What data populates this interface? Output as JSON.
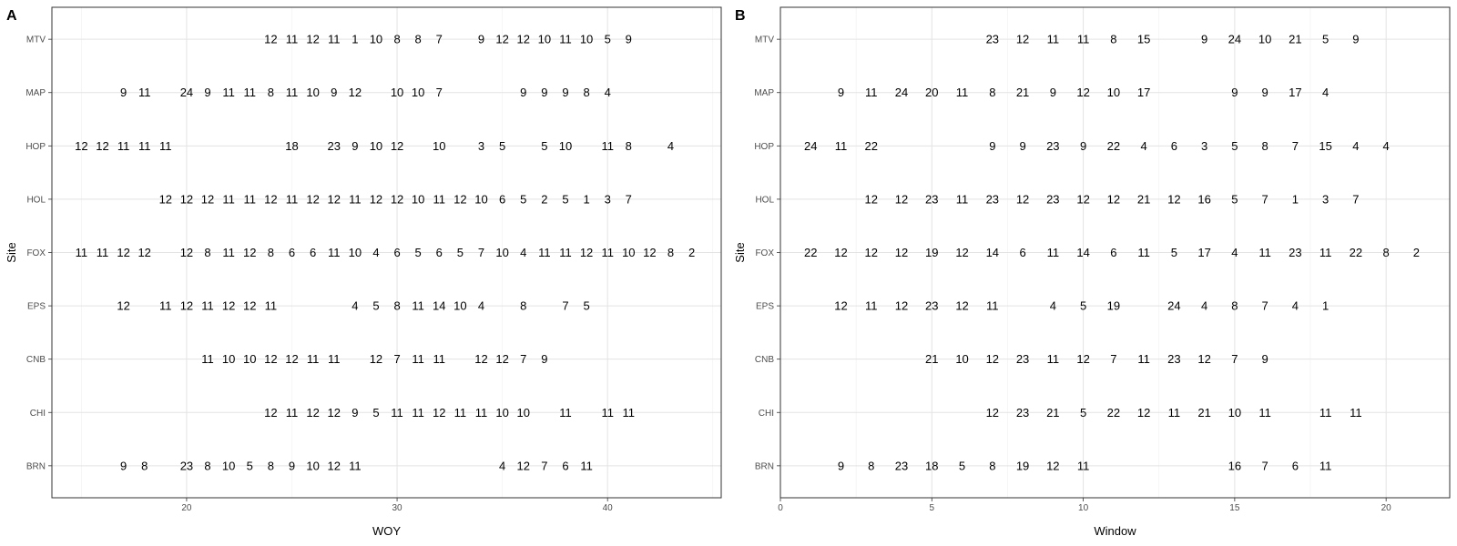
{
  "chart_data": [
    {
      "panel_tag": "A",
      "type": "table",
      "xlabel": "WOY",
      "ylabel": "Site",
      "xlim": [
        13.6,
        45.4
      ],
      "xticks": [
        20,
        30,
        40
      ],
      "sites": [
        "BRN",
        "CHI",
        "CNB",
        "EPS",
        "FOX",
        "HOL",
        "HOP",
        "MAP",
        "MTV"
      ],
      "grid": true,
      "rows": [
        {
          "site": "MTV",
          "x": [
            24,
            25,
            26,
            27,
            28,
            29,
            30,
            31,
            32,
            34,
            35,
            36,
            37,
            38,
            39,
            40,
            41
          ],
          "labels": [
            "12",
            "11",
            "12",
            "11",
            "1",
            "10",
            "8",
            "8",
            "7",
            "9",
            "12",
            "12",
            "10",
            "11",
            "10",
            "5",
            "9"
          ]
        },
        {
          "site": "MAP",
          "x": [
            17,
            18,
            20,
            21,
            22,
            23,
            24,
            25,
            26,
            27,
            28,
            30,
            31,
            32,
            36,
            37,
            38,
            39,
            40
          ],
          "labels": [
            "9",
            "11",
            "24",
            "9",
            "11",
            "11",
            "8",
            "11",
            "10",
            "9",
            "12",
            "10",
            "10",
            "7",
            "9",
            "9",
            "9",
            "8",
            "4"
          ]
        },
        {
          "site": "HOP",
          "x": [
            15,
            16,
            17,
            18,
            19,
            25,
            27,
            28,
            29,
            30,
            32,
            34,
            35,
            37,
            38,
            40,
            41,
            43
          ],
          "labels": [
            "12",
            "12",
            "11",
            "11",
            "11",
            "18",
            "23",
            "9",
            "10",
            "12",
            "10",
            "3",
            "5",
            "5",
            "10",
            "11",
            "8",
            "4"
          ]
        },
        {
          "site": "HOL",
          "x": [
            19,
            20,
            21,
            22,
            23,
            24,
            25,
            26,
            27,
            28,
            29,
            30,
            31,
            32,
            33,
            34,
            35,
            36,
            37,
            38,
            39,
            40,
            41
          ],
          "labels": [
            "12",
            "12",
            "12",
            "11",
            "11",
            "12",
            "11",
            "12",
            "12",
            "11",
            "12",
            "12",
            "10",
            "11",
            "12",
            "10",
            "6",
            "5",
            "2",
            "5",
            "1",
            "3",
            "7"
          ]
        },
        {
          "site": "FOX",
          "x": [
            15,
            16,
            17,
            18,
            20,
            21,
            22,
            23,
            24,
            25,
            26,
            27,
            28,
            29,
            30,
            31,
            32,
            33,
            34,
            35,
            36,
            37,
            38,
            39,
            40,
            41,
            42,
            43,
            44
          ],
          "labels": [
            "11",
            "11",
            "12",
            "12",
            "12",
            "8",
            "11",
            "12",
            "8",
            "6",
            "6",
            "11",
            "10",
            "4",
            "6",
            "5",
            "6",
            "5",
            "7",
            "10",
            "4",
            "11",
            "11",
            "12",
            "11",
            "10",
            "12",
            "8",
            "2"
          ]
        },
        {
          "site": "EPS",
          "x": [
            17,
            19,
            20,
            21,
            22,
            23,
            24,
            28,
            29,
            30,
            31,
            32,
            33,
            34,
            36,
            38,
            39
          ],
          "labels": [
            "12",
            "11",
            "12",
            "11",
            "12",
            "12",
            "11",
            "4",
            "5",
            "8",
            "11",
            "14",
            "10",
            "4",
            "8",
            "7",
            "5"
          ]
        },
        {
          "site": "CNB",
          "x": [
            21,
            22,
            23,
            24,
            25,
            26,
            27,
            29,
            30,
            31,
            32,
            34,
            35,
            36,
            37
          ],
          "labels": [
            "11",
            "10",
            "10",
            "12",
            "12",
            "11",
            "11",
            "12",
            "7",
            "11",
            "11",
            "12",
            "12",
            "7",
            "9"
          ]
        },
        {
          "site": "CHI",
          "x": [
            24,
            25,
            26,
            27,
            28,
            29,
            30,
            31,
            32,
            33,
            34,
            35,
            36,
            38,
            40,
            41
          ],
          "labels": [
            "12",
            "11",
            "12",
            "12",
            "9",
            "5",
            "11",
            "11",
            "12",
            "11",
            "11",
            "10",
            "10",
            "11",
            "11",
            "11"
          ]
        },
        {
          "site": "BRN",
          "x": [
            17,
            18,
            20,
            21,
            22,
            23,
            24,
            25,
            26,
            27,
            28,
            35,
            36,
            37,
            38,
            39
          ],
          "labels": [
            "9",
            "8",
            "23",
            "8",
            "10",
            "5",
            "8",
            "9",
            "10",
            "12",
            "11",
            "4",
            "12",
            "7",
            "6",
            "11"
          ]
        }
      ]
    },
    {
      "panel_tag": "B",
      "type": "table",
      "xlabel": "Window",
      "ylabel": "Site",
      "xlim": [
        0,
        22.1
      ],
      "xticks": [
        0,
        5,
        10,
        15,
        20
      ],
      "sites": [
        "BRN",
        "CHI",
        "CNB",
        "EPS",
        "FOX",
        "HOL",
        "HOP",
        "MAP",
        "MTV"
      ],
      "grid": true,
      "rows": [
        {
          "site": "MTV",
          "x": [
            7,
            8,
            9,
            10,
            11,
            12,
            14,
            15,
            16,
            17,
            18,
            19
          ],
          "labels": [
            "23",
            "12",
            "11",
            "11",
            "8",
            "15",
            "9",
            "24",
            "10",
            "21",
            "5",
            "9"
          ]
        },
        {
          "site": "MAP",
          "x": [
            2,
            3,
            4,
            5,
            6,
            7,
            8,
            9,
            10,
            11,
            12,
            15,
            16,
            17,
            18
          ],
          "labels": [
            "9",
            "11",
            "24",
            "20",
            "11",
            "8",
            "21",
            "9",
            "12",
            "10",
            "17",
            "9",
            "9",
            "17",
            "4"
          ]
        },
        {
          "site": "HOP",
          "x": [
            1,
            2,
            3,
            7,
            8,
            9,
            10,
            11,
            12,
            13,
            14,
            15,
            16,
            17,
            18,
            19,
            20
          ],
          "labels": [
            "24",
            "11",
            "22",
            "9",
            "9",
            "23",
            "9",
            "22",
            "4",
            "6",
            "3",
            "5",
            "8",
            "7",
            "15",
            "4",
            "4"
          ]
        },
        {
          "site": "HOL",
          "x": [
            3,
            4,
            5,
            6,
            7,
            8,
            9,
            10,
            11,
            12,
            13,
            14,
            15,
            16,
            17,
            18,
            19
          ],
          "labels": [
            "12",
            "12",
            "23",
            "11",
            "23",
            "12",
            "23",
            "12",
            "12",
            "21",
            "12",
            "16",
            "5",
            "7",
            "1",
            "3",
            "7"
          ]
        },
        {
          "site": "FOX",
          "x": [
            1,
            2,
            3,
            4,
            5,
            6,
            7,
            8,
            9,
            10,
            11,
            12,
            13,
            14,
            15,
            16,
            17,
            18,
            19,
            20,
            21
          ],
          "labels": [
            "22",
            "12",
            "12",
            "12",
            "19",
            "12",
            "14",
            "6",
            "11",
            "14",
            "6",
            "11",
            "5",
            "17",
            "4",
            "11",
            "23",
            "11",
            "22",
            "8",
            "2"
          ]
        },
        {
          "site": "EPS",
          "x": [
            2,
            3,
            4,
            5,
            6,
            7,
            9,
            10,
            11,
            13,
            14,
            15,
            16,
            17,
            18
          ],
          "labels": [
            "12",
            "11",
            "12",
            "23",
            "12",
            "11",
            "4",
            "5",
            "19",
            "24",
            "4",
            "8",
            "7",
            "4",
            "1"
          ]
        },
        {
          "site": "CNB",
          "x": [
            5,
            6,
            7,
            8,
            9,
            10,
            11,
            12,
            13,
            14,
            15,
            16
          ],
          "labels": [
            "21",
            "10",
            "12",
            "23",
            "11",
            "12",
            "7",
            "11",
            "23",
            "12",
            "7",
            "9"
          ]
        },
        {
          "site": "CHI",
          "x": [
            7,
            8,
            9,
            10,
            11,
            12,
            13,
            14,
            15,
            16,
            18,
            19
          ],
          "labels": [
            "12",
            "23",
            "21",
            "5",
            "22",
            "12",
            "11",
            "21",
            "10",
            "11",
            "11",
            "11"
          ]
        },
        {
          "site": "BRN",
          "x": [
            2,
            3,
            4,
            5,
            6,
            7,
            8,
            9,
            10,
            15,
            16,
            17,
            18
          ],
          "labels": [
            "9",
            "8",
            "23",
            "18",
            "5",
            "8",
            "19",
            "12",
            "11",
            "16",
            "7",
            "6",
            "11"
          ]
        }
      ]
    }
  ]
}
